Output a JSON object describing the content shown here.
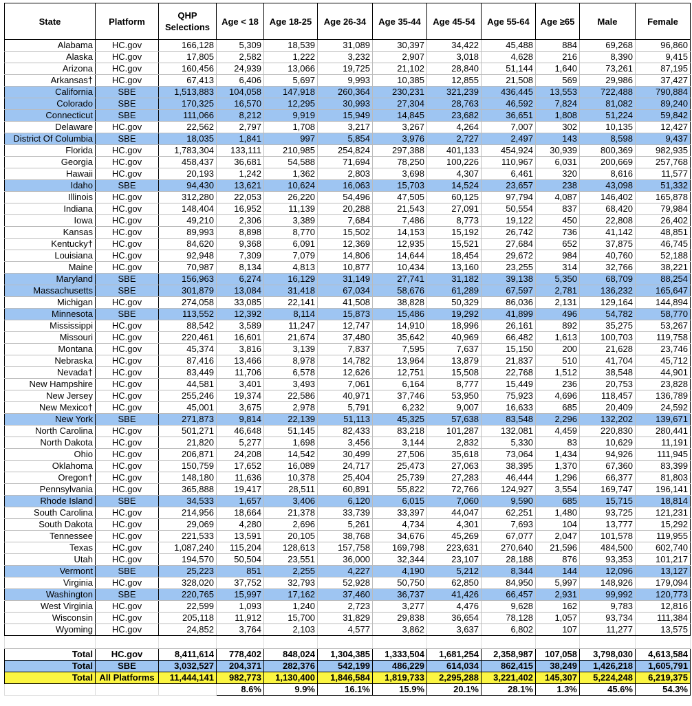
{
  "table": {
    "header": [
      "State",
      "Platform",
      "QHP Selections",
      "Age < 18",
      "Age 18-25",
      "Age 26-34",
      "Age 35-44",
      "Age 45-54",
      "Age 55-64",
      "Age ≥65",
      "Male",
      "Female"
    ],
    "rows": [
      [
        "Alabama",
        "HC.gov",
        "166,128",
        "5,309",
        "18,539",
        "31,089",
        "30,397",
        "34,422",
        "45,488",
        "884",
        "69,268",
        "96,860"
      ],
      [
        "Alaska",
        "HC.gov",
        "17,805",
        "2,582",
        "1,222",
        "3,232",
        "2,907",
        "3,018",
        "4,628",
        "216",
        "8,390",
        "9,415"
      ],
      [
        "Arizona",
        "HC.gov",
        "160,456",
        "24,939",
        "13,066",
        "19,725",
        "21,102",
        "28,840",
        "51,144",
        "1,640",
        "73,261",
        "87,195"
      ],
      [
        "Arkansas†",
        "HC.gov",
        "67,413",
        "6,406",
        "5,697",
        "9,993",
        "10,385",
        "12,855",
        "21,508",
        "569",
        "29,986",
        "37,427"
      ],
      [
        "California",
        "SBE",
        "1,513,883",
        "104,058",
        "147,918",
        "260,364",
        "230,231",
        "321,239",
        "436,445",
        "13,553",
        "722,488",
        "790,884"
      ],
      [
        "Colorado",
        "SBE",
        "170,325",
        "16,570",
        "12,295",
        "30,993",
        "27,304",
        "28,763",
        "46,592",
        "7,824",
        "81,082",
        "89,240"
      ],
      [
        "Connecticut",
        "SBE",
        "111,066",
        "8,212",
        "9,919",
        "15,949",
        "14,845",
        "23,682",
        "36,651",
        "1,808",
        "51,224",
        "59,842"
      ],
      [
        "Delaware",
        "HC.gov",
        "22,562",
        "2,797",
        "1,708",
        "3,217",
        "3,267",
        "4,264",
        "7,007",
        "302",
        "10,135",
        "12,427"
      ],
      [
        "District Of Columbia",
        "SBE",
        "18,035",
        "1,841",
        "997",
        "5,854",
        "3,976",
        "2,727",
        "2,497",
        "143",
        "8,598",
        "9,437"
      ],
      [
        "Florida",
        "HC.gov",
        "1,783,304",
        "133,111",
        "210,985",
        "254,824",
        "297,388",
        "401,133",
        "454,924",
        "30,939",
        "800,369",
        "982,935"
      ],
      [
        "Georgia",
        "HC.gov",
        "458,437",
        "36,681",
        "54,588",
        "71,694",
        "78,250",
        "100,226",
        "110,967",
        "6,031",
        "200,669",
        "257,768"
      ],
      [
        "Hawaii",
        "HC.gov",
        "20,193",
        "1,242",
        "1,362",
        "2,803",
        "3,698",
        "4,307",
        "6,461",
        "320",
        "8,616",
        "11,577"
      ],
      [
        "Idaho",
        "SBE",
        "94,430",
        "13,621",
        "10,624",
        "16,063",
        "15,703",
        "14,524",
        "23,657",
        "238",
        "43,098",
        "51,332"
      ],
      [
        "Illinois",
        "HC.gov",
        "312,280",
        "22,053",
        "26,220",
        "54,496",
        "47,505",
        "60,125",
        "97,794",
        "4,087",
        "146,402",
        "165,878"
      ],
      [
        "Indiana",
        "HC.gov",
        "148,404",
        "16,952",
        "11,139",
        "20,288",
        "21,543",
        "27,091",
        "50,554",
        "837",
        "68,420",
        "79,984"
      ],
      [
        "Iowa",
        "HC.gov",
        "49,210",
        "2,306",
        "3,389",
        "7,684",
        "7,486",
        "8,773",
        "19,122",
        "450",
        "22,808",
        "26,402"
      ],
      [
        "Kansas",
        "HC.gov",
        "89,993",
        "8,898",
        "8,770",
        "15,502",
        "14,153",
        "15,192",
        "26,742",
        "736",
        "41,142",
        "48,851"
      ],
      [
        "Kentucky†",
        "HC.gov",
        "84,620",
        "9,368",
        "6,091",
        "12,369",
        "12,935",
        "15,521",
        "27,684",
        "652",
        "37,875",
        "46,745"
      ],
      [
        "Louisiana",
        "HC.gov",
        "92,948",
        "7,309",
        "7,079",
        "14,806",
        "14,644",
        "18,454",
        "29,672",
        "984",
        "40,760",
        "52,188"
      ],
      [
        "Maine",
        "HC.gov",
        "70,987",
        "8,134",
        "4,813",
        "10,877",
        "10,434",
        "13,160",
        "23,255",
        "314",
        "32,766",
        "38,221"
      ],
      [
        "Maryland",
        "SBE",
        "156,963",
        "6,274",
        "16,129",
        "31,149",
        "27,741",
        "31,182",
        "39,138",
        "5,350",
        "68,709",
        "88,254"
      ],
      [
        "Massachusetts",
        "SBE",
        "301,879",
        "13,084",
        "31,418",
        "67,034",
        "58,676",
        "61,289",
        "67,597",
        "2,781",
        "136,232",
        "165,647"
      ],
      [
        "Michigan",
        "HC.gov",
        "274,058",
        "33,085",
        "22,141",
        "41,508",
        "38,828",
        "50,329",
        "86,036",
        "2,131",
        "129,164",
        "144,894"
      ],
      [
        "Minnesota",
        "SBE",
        "113,552",
        "12,392",
        "8,114",
        "15,873",
        "15,486",
        "19,292",
        "41,899",
        "496",
        "54,782",
        "58,770"
      ],
      [
        "Mississippi",
        "HC.gov",
        "88,542",
        "3,589",
        "11,247",
        "12,747",
        "14,910",
        "18,996",
        "26,161",
        "892",
        "35,275",
        "53,267"
      ],
      [
        "Missouri",
        "HC.gov",
        "220,461",
        "16,601",
        "21,674",
        "37,480",
        "35,642",
        "40,969",
        "66,482",
        "1,613",
        "100,703",
        "119,758"
      ],
      [
        "Montana",
        "HC.gov",
        "45,374",
        "3,816",
        "3,139",
        "7,837",
        "7,595",
        "7,637",
        "15,150",
        "200",
        "21,628",
        "23,746"
      ],
      [
        "Nebraska",
        "HC.gov",
        "87,416",
        "13,466",
        "8,978",
        "14,782",
        "13,964",
        "13,879",
        "21,837",
        "510",
        "41,704",
        "45,712"
      ],
      [
        "Nevada†",
        "HC.gov",
        "83,449",
        "11,706",
        "6,578",
        "12,626",
        "12,751",
        "15,508",
        "22,768",
        "1,512",
        "38,548",
        "44,901"
      ],
      [
        "New Hampshire",
        "HC.gov",
        "44,581",
        "3,401",
        "3,493",
        "7,061",
        "6,164",
        "8,777",
        "15,449",
        "236",
        "20,753",
        "23,828"
      ],
      [
        "New Jersey",
        "HC.gov",
        "255,246",
        "19,374",
        "22,586",
        "40,971",
        "37,746",
        "53,950",
        "75,923",
        "4,696",
        "118,457",
        "136,789"
      ],
      [
        "New Mexico†",
        "HC.gov",
        "45,001",
        "3,675",
        "2,978",
        "5,791",
        "6,232",
        "9,007",
        "16,633",
        "685",
        "20,409",
        "24,592"
      ],
      [
        "New York",
        "SBE",
        "271,873",
        "9,814",
        "22,139",
        "51,113",
        "45,325",
        "57,638",
        "83,548",
        "2,296",
        "132,202",
        "139,671"
      ],
      [
        "North Carolina",
        "HC.gov",
        "501,271",
        "46,648",
        "51,145",
        "82,433",
        "83,218",
        "101,287",
        "132,081",
        "4,459",
        "220,830",
        "280,441"
      ],
      [
        "North Dakota",
        "HC.gov",
        "21,820",
        "5,277",
        "1,698",
        "3,456",
        "3,144",
        "2,832",
        "5,330",
        "83",
        "10,629",
        "11,191"
      ],
      [
        "Ohio",
        "HC.gov",
        "206,871",
        "24,208",
        "14,542",
        "30,499",
        "27,506",
        "35,618",
        "73,064",
        "1,434",
        "94,926",
        "111,945"
      ],
      [
        "Oklahoma",
        "HC.gov",
        "150,759",
        "17,652",
        "16,089",
        "24,717",
        "25,473",
        "27,063",
        "38,395",
        "1,370",
        "67,360",
        "83,399"
      ],
      [
        "Oregon†",
        "HC.gov",
        "148,180",
        "11,636",
        "10,378",
        "25,404",
        "25,739",
        "27,283",
        "46,444",
        "1,296",
        "66,377",
        "81,803"
      ],
      [
        "Pennsylvania",
        "HC.gov",
        "365,888",
        "19,417",
        "28,511",
        "60,891",
        "55,822",
        "72,766",
        "124,927",
        "3,554",
        "169,747",
        "196,141"
      ],
      [
        "Rhode Island",
        "SBE",
        "34,533",
        "1,657",
        "3,406",
        "6,120",
        "6,015",
        "7,060",
        "9,590",
        "685",
        "15,715",
        "18,814"
      ],
      [
        "South Carolina",
        "HC.gov",
        "214,956",
        "18,664",
        "21,378",
        "33,739",
        "33,397",
        "44,047",
        "62,251",
        "1,480",
        "93,725",
        "121,231"
      ],
      [
        "South Dakota",
        "HC.gov",
        "29,069",
        "4,280",
        "2,696",
        "5,261",
        "4,734",
        "4,301",
        "7,693",
        "104",
        "13,777",
        "15,292"
      ],
      [
        "Tennessee",
        "HC.gov",
        "221,533",
        "13,591",
        "20,105",
        "38,768",
        "34,676",
        "45,269",
        "67,077",
        "2,047",
        "101,578",
        "119,955"
      ],
      [
        "Texas",
        "HC.gov",
        "1,087,240",
        "115,204",
        "128,613",
        "157,758",
        "169,798",
        "223,631",
        "270,640",
        "21,596",
        "484,500",
        "602,740"
      ],
      [
        "Utah",
        "HC.gov",
        "194,570",
        "50,504",
        "23,551",
        "36,000",
        "32,344",
        "23,107",
        "28,188",
        "876",
        "93,353",
        "101,217"
      ],
      [
        "Vermont",
        "SBE",
        "25,223",
        "851",
        "2,255",
        "4,227",
        "4,190",
        "5,212",
        "8,344",
        "144",
        "12,096",
        "13,127"
      ],
      [
        "Virginia",
        "HC.gov",
        "328,020",
        "37,752",
        "32,793",
        "52,928",
        "50,750",
        "62,850",
        "84,950",
        "5,997",
        "148,926",
        "179,094"
      ],
      [
        "Washington",
        "SBE",
        "220,765",
        "15,997",
        "17,162",
        "37,460",
        "36,737",
        "41,426",
        "66,457",
        "2,931",
        "99,992",
        "120,773"
      ],
      [
        "West Virginia",
        "HC.gov",
        "22,599",
        "1,093",
        "1,240",
        "2,723",
        "3,277",
        "4,476",
        "9,628",
        "162",
        "9,783",
        "12,816"
      ],
      [
        "Wisconsin",
        "HC.gov",
        "205,118",
        "11,912",
        "15,700",
        "31,829",
        "29,838",
        "36,654",
        "78,128",
        "1,057",
        "93,734",
        "111,384"
      ],
      [
        "Wyoming",
        "HC.gov",
        "24,852",
        "3,764",
        "2,103",
        "4,577",
        "3,862",
        "3,637",
        "6,802",
        "107",
        "11,277",
        "13,575"
      ]
    ],
    "totals": [
      [
        "Total",
        "HC.gov",
        "8,411,614",
        "778,402",
        "848,024",
        "1,304,385",
        "1,333,504",
        "1,681,254",
        "2,358,987",
        "107,058",
        "3,798,030",
        "4,613,584"
      ],
      [
        "Total",
        "SBE",
        "3,032,527",
        "204,371",
        "282,376",
        "542,199",
        "486,229",
        "614,034",
        "862,415",
        "38,249",
        "1,426,218",
        "1,605,791"
      ],
      [
        "Total",
        "All Platforms",
        "11,444,141",
        "982,773",
        "1,130,400",
        "1,846,584",
        "1,819,733",
        "2,295,288",
        "3,221,402",
        "145,307",
        "5,224,248",
        "6,219,375"
      ]
    ],
    "percentages": [
      "8.6%",
      "9.9%",
      "16.1%",
      "15.9%",
      "20.1%",
      "28.1%",
      "1.3%",
      "45.6%",
      "54.3%"
    ]
  }
}
